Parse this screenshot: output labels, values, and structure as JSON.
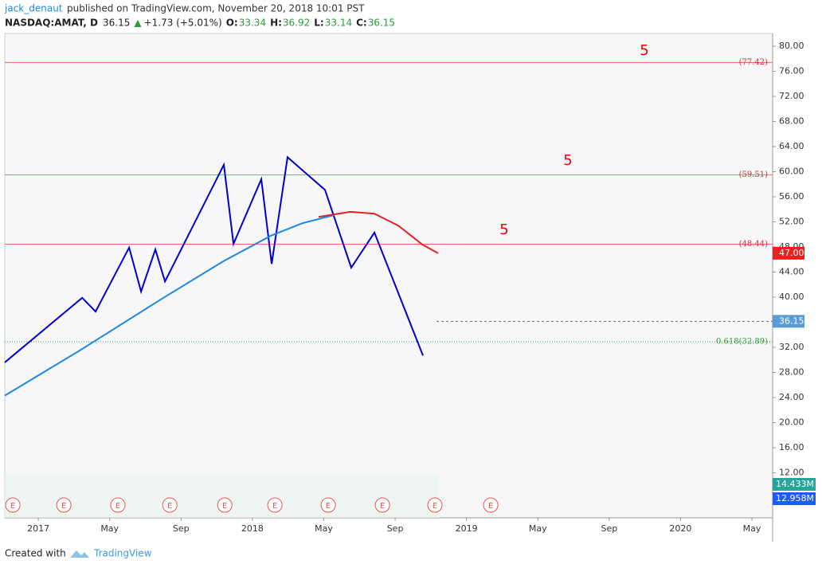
{
  "chart_data": {
    "type": "line",
    "author": "jack_denaut",
    "published": "published on TradingView.com, November 20, 2018 10:01 PST",
    "symbol": "NASDAQ:AMAT, D",
    "last": "36.15",
    "arrow": "▲",
    "change": "+1.73 (+5.01%)",
    "ohlc": [
      {
        "key": "O:",
        "value": "33.34"
      },
      {
        "key": "H:",
        "value": "36.92"
      },
      {
        "key": "L:",
        "value": "33.14"
      },
      {
        "key": "C:",
        "value": "36.15"
      }
    ],
    "xlim": [
      -1.88,
      41.16
    ],
    "xticks": [
      {
        "value": 0,
        "label": "2017"
      },
      {
        "value": 4,
        "label": "May"
      },
      {
        "value": 8,
        "label": "Sep"
      },
      {
        "value": 12,
        "label": "2018"
      },
      {
        "value": 16,
        "label": "May"
      },
      {
        "value": 20,
        "label": "Sep"
      },
      {
        "value": 24,
        "label": "2019"
      },
      {
        "value": 28,
        "label": "May"
      },
      {
        "value": 32,
        "label": "Sep"
      },
      {
        "value": 36,
        "label": "2020"
      },
      {
        "value": 40,
        "label": "May"
      }
    ],
    "ylim": [
      4.83,
      82.03
    ],
    "yticks": [
      {
        "value": 80,
        "label": "80.00"
      },
      {
        "value": 76,
        "label": "76.00"
      },
      {
        "value": 72,
        "label": "72.00"
      },
      {
        "value": 68,
        "label": "68.00"
      },
      {
        "value": 64,
        "label": "64.00"
      },
      {
        "value": 60,
        "label": "60.00"
      },
      {
        "value": 56,
        "label": "56.00"
      },
      {
        "value": 52,
        "label": "52.00"
      },
      {
        "value": 48,
        "label": "48.00"
      },
      {
        "value": 44,
        "label": "44.00"
      },
      {
        "value": 40,
        "label": "40.00"
      },
      {
        "value": 36,
        "label": "36.00"
      },
      {
        "value": 32,
        "label": "32.00"
      },
      {
        "value": 28,
        "label": "28.00"
      },
      {
        "value": 24,
        "label": "24.00"
      },
      {
        "value": 20,
        "label": "20.00"
      },
      {
        "value": 16,
        "label": "16.00"
      },
      {
        "value": 12,
        "label": "12.00"
      }
    ],
    "series": [
      {
        "color": "#0000cc",
        "x": [
          -1.88,
          2.46,
          3.21,
          5.09,
          5.76,
          6.56,
          7.1,
          10.4,
          10.94,
          12.5,
          13.08,
          13.97,
          16.07,
          17.54,
          18.84,
          21.56
        ],
        "values": [
          29.6,
          39.9,
          37.7,
          47.9,
          40.9,
          47.6,
          42.5,
          61.1,
          48.5,
          58.8,
          45.3,
          62.3,
          57.1,
          44.7,
          50.3,
          30.7
        ]
      },
      {
        "color": "#1e88e5",
        "x": [
          -1.88,
          2.32,
          6.79,
          10.36,
          13.04,
          14.82,
          16.61
        ],
        "values": [
          24.3,
          31.5,
          39.5,
          45.7,
          49.8,
          51.8,
          53.1
        ]
      },
      {
        "color": "#e82020",
        "x": [
          15.71,
          17.5,
          18.84,
          20.18,
          21.52,
          22.41
        ],
        "values": [
          52.8,
          53.6,
          53.3,
          51.4,
          48.4,
          47.0
        ]
      }
    ],
    "levels": [
      {
        "value": 77.42,
        "label": "(77.42)"
      },
      {
        "value": 59.51,
        "label": "(59.51)"
      },
      {
        "value": 48.44,
        "label": "(48.44)"
      }
    ],
    "fib": {
      "value": 32.89,
      "label": "0.618(32.89)"
    },
    "price_line": 36.15,
    "ma_tag": {
      "value": 47,
      "label": "47.00"
    },
    "annotations": [
      "5",
      "5",
      "5"
    ],
    "volume_tags": [
      "14.433M",
      "12.958M"
    ],
    "earnings_label": "E",
    "earnings": [
      -1.43,
      1.43,
      4.46,
      7.37,
      10.45,
      13.26,
      16.25,
      19.29,
      22.23,
      25.36
    ],
    "footer": "Created with",
    "brand": "TradingView"
  }
}
